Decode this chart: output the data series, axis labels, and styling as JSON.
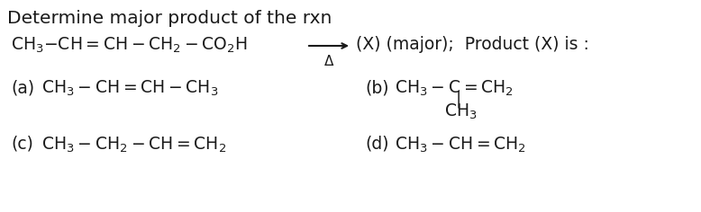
{
  "title": "Determine major product of the rxn",
  "bg_color": "#ffffff",
  "text_color": "#1a1a1a",
  "title_fontsize": 14.5,
  "body_fontsize": 13.5,
  "small_fontsize": 11,
  "reaction_left": "CH$_3$ –CH = CH–CH$_2$–CO$_2$H",
  "after_arrow": "(X) (major);  Product (X) is :",
  "delta": "Δ",
  "opt_a_label": "(a)",
  "opt_a_formula": "CH$_3$ –CH = CH–CH$_3$",
  "opt_b_label": "(b)",
  "opt_b_formula": "CH$_3$–C =CH$_2$",
  "opt_b_branch": "CH$_3$",
  "opt_c_label": "(c)",
  "opt_c_formula": "CH$_3$ –CH$_2$ –CH = CH$_2$",
  "opt_d_label": "(d)",
  "opt_d_formula": "CH$_3$ –CH = CH$_2$"
}
